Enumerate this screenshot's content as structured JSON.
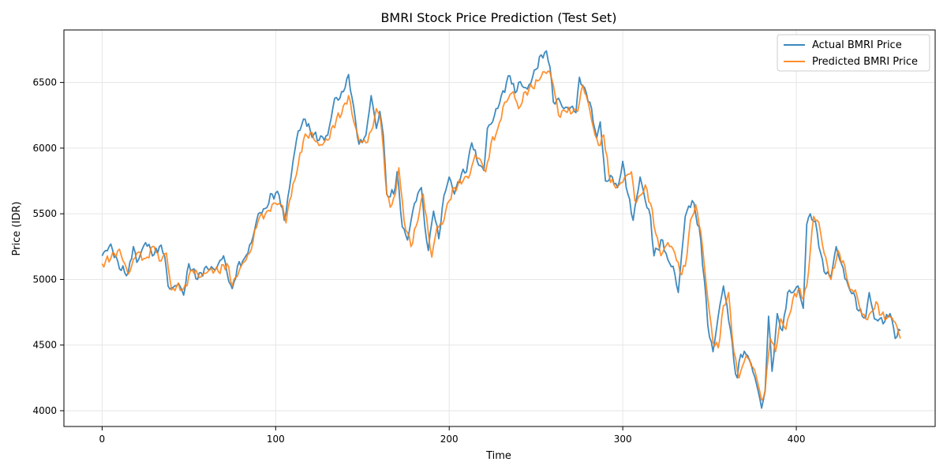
{
  "chart_data": {
    "type": "line",
    "title": "BMRI Stock Price Prediction (Test Set)",
    "xlabel": "Time",
    "ylabel": "Price (IDR)",
    "xlim": [
      -22,
      480
    ],
    "ylim": [
      3880,
      6900
    ],
    "xticks": [
      0,
      100,
      200,
      300,
      400
    ],
    "yticks": [
      4000,
      4500,
      5000,
      5500,
      6000,
      6500
    ],
    "grid": true,
    "legend_position": "top-right",
    "series": [
      {
        "name": "Actual BMRI Price",
        "color": "#1f77b4",
        "keypoints": [
          [
            0,
            5180
          ],
          [
            5,
            5270
          ],
          [
            10,
            5080
          ],
          [
            15,
            5050
          ],
          [
            18,
            5250
          ],
          [
            20,
            5130
          ],
          [
            25,
            5280
          ],
          [
            30,
            5190
          ],
          [
            33,
            5250
          ],
          [
            36,
            5180
          ],
          [
            38,
            4950
          ],
          [
            41,
            4940
          ],
          [
            44,
            4970
          ],
          [
            47,
            4880
          ],
          [
            50,
            5120
          ],
          [
            55,
            5000
          ],
          [
            60,
            5100
          ],
          [
            65,
            5070
          ],
          [
            70,
            5180
          ],
          [
            72,
            5050
          ],
          [
            75,
            4930
          ],
          [
            78,
            5100
          ],
          [
            82,
            5160
          ],
          [
            86,
            5280
          ],
          [
            90,
            5500
          ],
          [
            94,
            5540
          ],
          [
            98,
            5650
          ],
          [
            102,
            5640
          ],
          [
            105,
            5450
          ],
          [
            108,
            5700
          ],
          [
            110,
            5900
          ],
          [
            113,
            6130
          ],
          [
            117,
            6220
          ],
          [
            120,
            6130
          ],
          [
            125,
            6060
          ],
          [
            130,
            6100
          ],
          [
            134,
            6380
          ],
          [
            137,
            6380
          ],
          [
            140,
            6460
          ],
          [
            142,
            6560
          ],
          [
            145,
            6310
          ],
          [
            148,
            6030
          ],
          [
            152,
            6100
          ],
          [
            155,
            6400
          ],
          [
            158,
            6150
          ],
          [
            160,
            6280
          ],
          [
            162,
            6100
          ],
          [
            164,
            5650
          ],
          [
            168,
            5650
          ],
          [
            170,
            5820
          ],
          [
            173,
            5400
          ],
          [
            176,
            5300
          ],
          [
            180,
            5580
          ],
          [
            184,
            5700
          ],
          [
            186,
            5400
          ],
          [
            188,
            5220
          ],
          [
            191,
            5520
          ],
          [
            194,
            5310
          ],
          [
            197,
            5640
          ],
          [
            200,
            5780
          ],
          [
            203,
            5650
          ],
          [
            207,
            5800
          ],
          [
            210,
            5820
          ],
          [
            213,
            6040
          ],
          [
            217,
            5870
          ],
          [
            220,
            5830
          ],
          [
            222,
            6150
          ],
          [
            225,
            6200
          ],
          [
            230,
            6400
          ],
          [
            235,
            6550
          ],
          [
            238,
            6420
          ],
          [
            240,
            6500
          ],
          [
            245,
            6450
          ],
          [
            250,
            6600
          ],
          [
            253,
            6710
          ],
          [
            256,
            6740
          ],
          [
            258,
            6620
          ],
          [
            260,
            6350
          ],
          [
            263,
            6380
          ],
          [
            266,
            6300
          ],
          [
            270,
            6310
          ],
          [
            273,
            6270
          ],
          [
            275,
            6540
          ],
          [
            278,
            6460
          ],
          [
            281,
            6350
          ],
          [
            285,
            6080
          ],
          [
            287,
            6200
          ],
          [
            290,
            5750
          ],
          [
            294,
            5780
          ],
          [
            297,
            5700
          ],
          [
            300,
            5900
          ],
          [
            303,
            5650
          ],
          [
            306,
            5450
          ],
          [
            310,
            5780
          ],
          [
            313,
            5600
          ],
          [
            316,
            5480
          ],
          [
            318,
            5180
          ],
          [
            320,
            5230
          ],
          [
            323,
            5300
          ],
          [
            326,
            5150
          ],
          [
            329,
            5100
          ],
          [
            332,
            4900
          ],
          [
            336,
            5480
          ],
          [
            340,
            5600
          ],
          [
            344,
            5400
          ],
          [
            347,
            5000
          ],
          [
            349,
            4650
          ],
          [
            352,
            4450
          ],
          [
            355,
            4720
          ],
          [
            358,
            4950
          ],
          [
            362,
            4620
          ],
          [
            364,
            4380
          ],
          [
            366,
            4250
          ],
          [
            368,
            4430
          ],
          [
            372,
            4420
          ],
          [
            376,
            4260
          ],
          [
            378,
            4150
          ],
          [
            380,
            4020
          ],
          [
            382,
            4150
          ],
          [
            384,
            4720
          ],
          [
            386,
            4300
          ],
          [
            389,
            4740
          ],
          [
            392,
            4610
          ],
          [
            395,
            4900
          ],
          [
            398,
            4900
          ],
          [
            401,
            4950
          ],
          [
            404,
            4780
          ],
          [
            406,
            5420
          ],
          [
            408,
            5500
          ],
          [
            411,
            5440
          ],
          [
            414,
            5200
          ],
          [
            416,
            5060
          ],
          [
            420,
            5020
          ],
          [
            423,
            5250
          ],
          [
            426,
            5120
          ],
          [
            430,
            4950
          ],
          [
            433,
            4900
          ],
          [
            436,
            4760
          ],
          [
            440,
            4710
          ],
          [
            442,
            4900
          ],
          [
            445,
            4700
          ],
          [
            448,
            4700
          ],
          [
            451,
            4680
          ],
          [
            454,
            4740
          ],
          [
            457,
            4550
          ],
          [
            460,
            4610
          ]
        ]
      },
      {
        "name": "Predicted BMRI Price",
        "color": "#ff7f0e",
        "keypoints": [
          [
            0,
            5120
          ],
          [
            5,
            5160
          ],
          [
            10,
            5230
          ],
          [
            15,
            5040
          ],
          [
            20,
            5200
          ],
          [
            25,
            5160
          ],
          [
            30,
            5250
          ],
          [
            33,
            5140
          ],
          [
            37,
            5200
          ],
          [
            40,
            4920
          ],
          [
            43,
            4950
          ],
          [
            47,
            4930
          ],
          [
            52,
            5070
          ],
          [
            57,
            5020
          ],
          [
            62,
            5080
          ],
          [
            67,
            5060
          ],
          [
            72,
            5120
          ],
          [
            75,
            4950
          ],
          [
            80,
            5100
          ],
          [
            85,
            5200
          ],
          [
            90,
            5450
          ],
          [
            95,
            5520
          ],
          [
            100,
            5580
          ],
          [
            104,
            5560
          ],
          [
            106,
            5430
          ],
          [
            108,
            5600
          ],
          [
            112,
            5800
          ],
          [
            116,
            6060
          ],
          [
            120,
            6120
          ],
          [
            125,
            6020
          ],
          [
            130,
            6060
          ],
          [
            135,
            6220
          ],
          [
            138,
            6260
          ],
          [
            142,
            6400
          ],
          [
            145,
            6200
          ],
          [
            148,
            6060
          ],
          [
            152,
            6040
          ],
          [
            155,
            6130
          ],
          [
            158,
            6300
          ],
          [
            160,
            6250
          ],
          [
            162,
            6000
          ],
          [
            164,
            5650
          ],
          [
            166,
            5550
          ],
          [
            169,
            5650
          ],
          [
            171,
            5850
          ],
          [
            174,
            5450
          ],
          [
            178,
            5250
          ],
          [
            182,
            5450
          ],
          [
            185,
            5650
          ],
          [
            188,
            5350
          ],
          [
            190,
            5170
          ],
          [
            193,
            5400
          ],
          [
            196,
            5420
          ],
          [
            199,
            5580
          ],
          [
            203,
            5700
          ],
          [
            208,
            5750
          ],
          [
            212,
            5800
          ],
          [
            215,
            5950
          ],
          [
            219,
            5880
          ],
          [
            221,
            5820
          ],
          [
            224,
            6030
          ],
          [
            228,
            6150
          ],
          [
            232,
            6350
          ],
          [
            237,
            6430
          ],
          [
            240,
            6300
          ],
          [
            244,
            6430
          ],
          [
            248,
            6460
          ],
          [
            252,
            6520
          ],
          [
            255,
            6580
          ],
          [
            258,
            6580
          ],
          [
            260,
            6480
          ],
          [
            263,
            6250
          ],
          [
            267,
            6280
          ],
          [
            271,
            6270
          ],
          [
            274,
            6280
          ],
          [
            277,
            6480
          ],
          [
            280,
            6350
          ],
          [
            284,
            6100
          ],
          [
            287,
            6020
          ],
          [
            289,
            6100
          ],
          [
            292,
            5800
          ],
          [
            295,
            5720
          ],
          [
            298,
            5720
          ],
          [
            302,
            5790
          ],
          [
            305,
            5820
          ],
          [
            307,
            5600
          ],
          [
            310,
            5640
          ],
          [
            313,
            5720
          ],
          [
            316,
            5580
          ],
          [
            319,
            5350
          ],
          [
            322,
            5180
          ],
          [
            326,
            5280
          ],
          [
            330,
            5200
          ],
          [
            333,
            5050
          ],
          [
            336,
            5100
          ],
          [
            339,
            5450
          ],
          [
            342,
            5570
          ],
          [
            345,
            5360
          ],
          [
            349,
            4850
          ],
          [
            352,
            4520
          ],
          [
            355,
            4480
          ],
          [
            358,
            4800
          ],
          [
            361,
            4900
          ],
          [
            364,
            4450
          ],
          [
            367,
            4250
          ],
          [
            371,
            4420
          ],
          [
            375,
            4330
          ],
          [
            378,
            4200
          ],
          [
            380,
            4080
          ],
          [
            382,
            4150
          ],
          [
            385,
            4550
          ],
          [
            388,
            4450
          ],
          [
            391,
            4700
          ],
          [
            394,
            4620
          ],
          [
            398,
            4850
          ],
          [
            401,
            4920
          ],
          [
            404,
            4850
          ],
          [
            406,
            4950
          ],
          [
            410,
            5480
          ],
          [
            413,
            5430
          ],
          [
            416,
            5200
          ],
          [
            420,
            5000
          ],
          [
            424,
            5220
          ],
          [
            428,
            5100
          ],
          [
            431,
            4920
          ],
          [
            434,
            4920
          ],
          [
            437,
            4760
          ],
          [
            440,
            4700
          ],
          [
            443,
            4750
          ],
          [
            446,
            4830
          ],
          [
            449,
            4730
          ],
          [
            452,
            4700
          ],
          [
            455,
            4710
          ],
          [
            458,
            4640
          ],
          [
            460,
            4550
          ]
        ]
      }
    ]
  }
}
